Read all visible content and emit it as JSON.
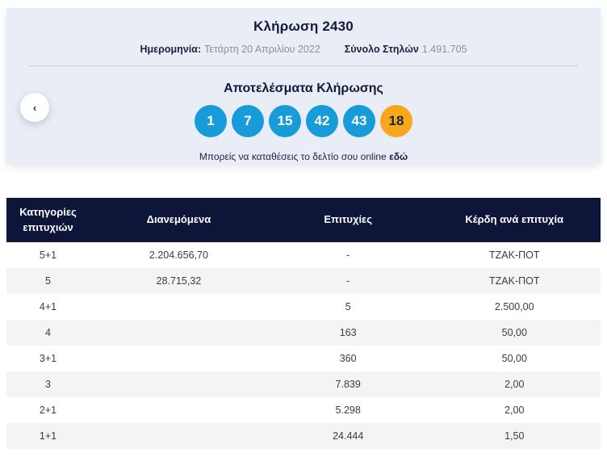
{
  "draw": {
    "title": "Κλήρωση 2430",
    "date_label": "Ημερομηνία:",
    "date_value": "Τετάρτη 20 Απριλίου 2022",
    "columns_label": "Σύνολο Στηλών",
    "columns_value": "1.491.705",
    "results_title": "Αποτελέσματα Κλήρωσης",
    "numbers": [
      "1",
      "7",
      "15",
      "42",
      "43"
    ],
    "bonus_number": "18",
    "note_text": "Μπορείς να καταθέσεις το δελτίο σου online",
    "note_link_text": "εδώ",
    "prev_arrow": "‹"
  },
  "table": {
    "headers": [
      "Κατηγορίες επιτυχιών",
      "Διανεμόμενα",
      "Επιτυχίες",
      "Κέρδη ανά επιτυχία"
    ],
    "rows": [
      {
        "category": "5+1",
        "distributed": "2.204.656,70",
        "winners": "-",
        "prize": "ΤΖΑΚ-ΠΟΤ"
      },
      {
        "category": "5",
        "distributed": "28.715,32",
        "winners": "-",
        "prize": "ΤΖΑΚ-ΠΟΤ"
      },
      {
        "category": "4+1",
        "distributed": "",
        "winners": "5",
        "prize": "2.500,00"
      },
      {
        "category": "4",
        "distributed": "",
        "winners": "163",
        "prize": "50,00"
      },
      {
        "category": "3+1",
        "distributed": "",
        "winners": "360",
        "prize": "50,00"
      },
      {
        "category": "3",
        "distributed": "",
        "winners": "7.839",
        "prize": "2,00"
      },
      {
        "category": "2+1",
        "distributed": "",
        "winners": "5.298",
        "prize": "2,00"
      },
      {
        "category": "1+1",
        "distributed": "",
        "winners": "24.444",
        "prize": "1,50"
      }
    ]
  },
  "colors": {
    "ball_blue": "#189cd9",
    "ball_bonus_orange": "#f6a71c",
    "table_header_navy": "#0d1539",
    "panel_background": "#e9edf5",
    "row_stripe": "#f4f4f7"
  }
}
